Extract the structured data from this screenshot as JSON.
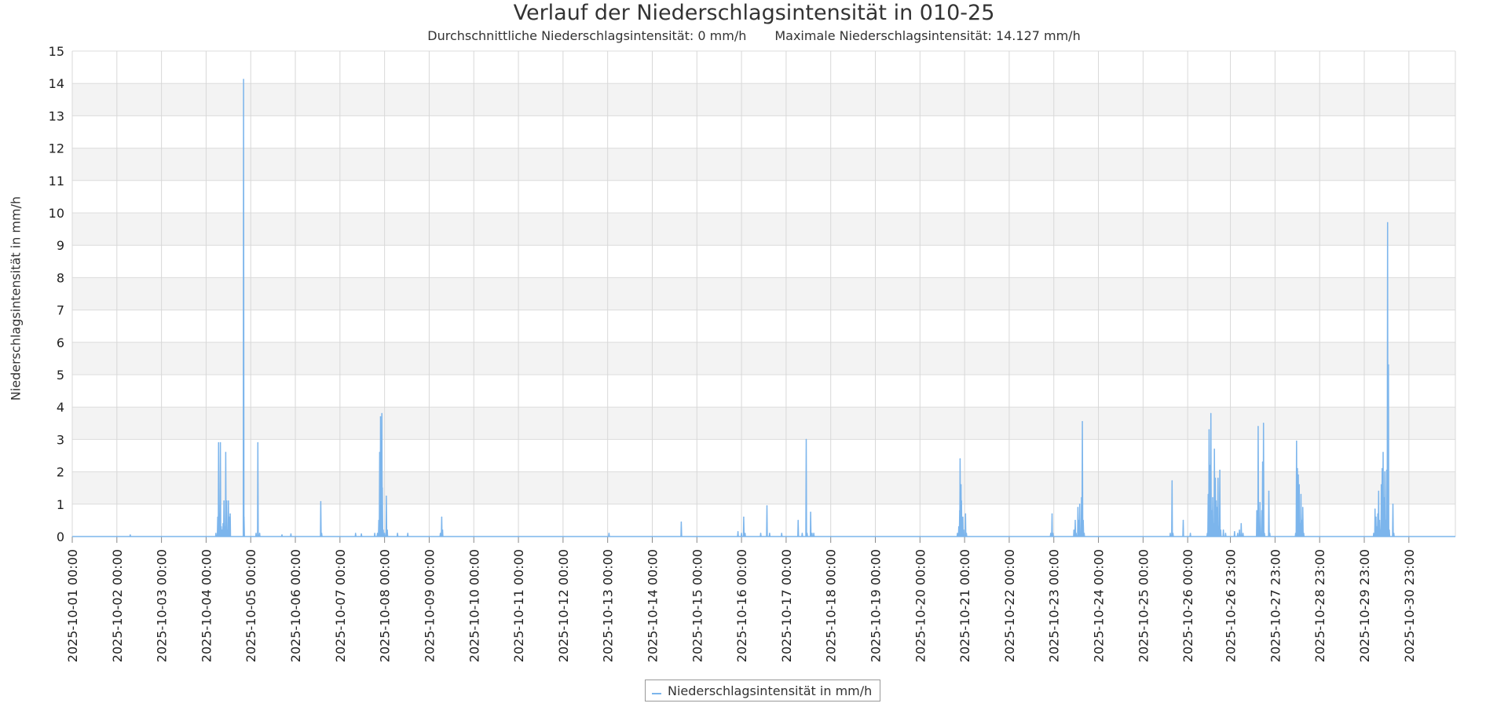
{
  "chart_data": {
    "type": "line",
    "title": "Verlauf der Niederschlagsintensität in 010-25",
    "subtitle_left": "Durchschnittliche Niederschlagsintensität: 0 mm/h",
    "subtitle_right": "Maximale Niederschlagsintensität: 14.127 mm/h",
    "ylabel": "Niederschlagsintensität in mm/h",
    "ylim": [
      0,
      15
    ],
    "ytick_step": 1,
    "xlim_days": [
      1,
      32
    ],
    "x_ticks": [
      {
        "label": "2025-10-01 00:00",
        "day": 1.0
      },
      {
        "label": "2025-10-02 00:00",
        "day": 2.0
      },
      {
        "label": "2025-10-03 00:00",
        "day": 3.0
      },
      {
        "label": "2025-10-04 00:00",
        "day": 4.0
      },
      {
        "label": "2025-10-05 00:00",
        "day": 5.0
      },
      {
        "label": "2025-10-06 00:00",
        "day": 6.0
      },
      {
        "label": "2025-10-07 00:00",
        "day": 7.0
      },
      {
        "label": "2025-10-08 00:00",
        "day": 8.0
      },
      {
        "label": "2025-10-09 00:00",
        "day": 9.0
      },
      {
        "label": "2025-10-10 00:00",
        "day": 10.0
      },
      {
        "label": "2025-10-11 00:00",
        "day": 11.0
      },
      {
        "label": "2025-10-12 00:00",
        "day": 12.0
      },
      {
        "label": "2025-10-13 00:00",
        "day": 13.0
      },
      {
        "label": "2025-10-14 00:00",
        "day": 14.0
      },
      {
        "label": "2025-10-15 00:00",
        "day": 15.0
      },
      {
        "label": "2025-10-16 00:00",
        "day": 16.0
      },
      {
        "label": "2025-10-17 00:00",
        "day": 17.0
      },
      {
        "label": "2025-10-18 00:00",
        "day": 18.0
      },
      {
        "label": "2025-10-19 00:00",
        "day": 19.0
      },
      {
        "label": "2025-10-20 00:00",
        "day": 20.0
      },
      {
        "label": "2025-10-21 00:00",
        "day": 21.0
      },
      {
        "label": "2025-10-22 00:00",
        "day": 22.0
      },
      {
        "label": "2025-10-23 00:00",
        "day": 23.0
      },
      {
        "label": "2025-10-24 00:00",
        "day": 24.0
      },
      {
        "label": "2025-10-25 00:00",
        "day": 25.0
      },
      {
        "label": "2025-10-26 00:00",
        "day": 26.0
      },
      {
        "label": "2025-10-26 23:00",
        "day": 26.958
      },
      {
        "label": "2025-10-27 23:00",
        "day": 27.958
      },
      {
        "label": "2025-10-28 23:00",
        "day": 28.958
      },
      {
        "label": "2025-10-29 23:00",
        "day": 29.958
      },
      {
        "label": "2025-10-30 23:00",
        "day": 30.958
      }
    ],
    "grid": true,
    "legend_position": "bottom-center",
    "series": [
      {
        "name": "Niederschlagsintensität in mm/h",
        "color": "#7cb5ec",
        "x_unit": "day of October 2025",
        "points": [
          [
            2.3,
            0.05
          ],
          [
            4.22,
            0.1
          ],
          [
            4.26,
            0.6
          ],
          [
            4.28,
            2.9
          ],
          [
            4.3,
            0.7
          ],
          [
            4.32,
            2.9
          ],
          [
            4.34,
            0.3
          ],
          [
            4.36,
            0.2
          ],
          [
            4.38,
            0.4
          ],
          [
            4.4,
            1.1
          ],
          [
            4.42,
            0.3
          ],
          [
            4.44,
            2.6
          ],
          [
            4.46,
            1.1
          ],
          [
            4.48,
            0.2
          ],
          [
            4.5,
            1.1
          ],
          [
            4.52,
            0.6
          ],
          [
            4.54,
            0.7
          ],
          [
            4.84,
            14.127
          ],
          [
            4.85,
            0.6
          ],
          [
            5.12,
            0.1
          ],
          [
            5.16,
            2.9
          ],
          [
            5.2,
            0.1
          ],
          [
            5.7,
            0.05
          ],
          [
            5.9,
            0.08
          ],
          [
            6.57,
            1.08
          ],
          [
            6.59,
            0.1
          ],
          [
            7.35,
            0.1
          ],
          [
            7.48,
            0.08
          ],
          [
            7.78,
            0.1
          ],
          [
            7.84,
            0.1
          ],
          [
            7.87,
            0.5
          ],
          [
            7.89,
            2.6
          ],
          [
            7.91,
            3.7
          ],
          [
            7.92,
            0.5
          ],
          [
            7.94,
            3.8
          ],
          [
            7.95,
            1.5
          ],
          [
            7.97,
            0.2
          ],
          [
            8.0,
            0.1
          ],
          [
            8.04,
            1.25
          ],
          [
            8.06,
            0.2
          ],
          [
            8.29,
            0.1
          ],
          [
            8.52,
            0.1
          ],
          [
            9.25,
            0.1
          ],
          [
            9.28,
            0.6
          ],
          [
            9.3,
            0.2
          ],
          [
            13.03,
            0.1
          ],
          [
            14.65,
            0.45
          ],
          [
            15.92,
            0.15
          ],
          [
            16.0,
            0.1
          ],
          [
            16.05,
            0.6
          ],
          [
            16.08,
            0.1
          ],
          [
            16.43,
            0.1
          ],
          [
            16.57,
            0.95
          ],
          [
            16.63,
            0.1
          ],
          [
            16.9,
            0.1
          ],
          [
            17.27,
            0.5
          ],
          [
            17.36,
            0.1
          ],
          [
            17.45,
            3.0
          ],
          [
            17.47,
            0.1
          ],
          [
            17.55,
            0.75
          ],
          [
            17.58,
            0.1
          ],
          [
            17.62,
            0.1
          ],
          [
            20.84,
            0.1
          ],
          [
            20.87,
            0.3
          ],
          [
            20.89,
            0.8
          ],
          [
            20.9,
            2.4
          ],
          [
            20.92,
            1.6
          ],
          [
            20.93,
            1.1
          ],
          [
            20.94,
            0.5
          ],
          [
            20.96,
            0.6
          ],
          [
            20.98,
            0.2
          ],
          [
            21.02,
            0.7
          ],
          [
            21.04,
            0.1
          ],
          [
            22.93,
            0.1
          ],
          [
            22.96,
            0.7
          ],
          [
            22.98,
            0.1
          ],
          [
            23.45,
            0.2
          ],
          [
            23.48,
            0.5
          ],
          [
            23.5,
            0.1
          ],
          [
            23.54,
            0.9
          ],
          [
            23.56,
            0.5
          ],
          [
            23.58,
            1.0
          ],
          [
            23.6,
            0.1
          ],
          [
            23.62,
            1.2
          ],
          [
            23.64,
            3.55
          ],
          [
            23.66,
            0.5
          ],
          [
            23.68,
            0.1
          ],
          [
            25.61,
            0.1
          ],
          [
            25.65,
            1.72
          ],
          [
            25.67,
            0.1
          ],
          [
            25.9,
            0.5
          ],
          [
            26.06,
            0.1
          ],
          [
            26.44,
            0.1
          ],
          [
            26.46,
            1.3
          ],
          [
            26.48,
            3.3
          ],
          [
            26.5,
            2.2
          ],
          [
            26.52,
            3.8
          ],
          [
            26.54,
            0.8
          ],
          [
            26.56,
            1.2
          ],
          [
            26.58,
            0.4
          ],
          [
            26.6,
            2.7
          ],
          [
            26.62,
            1.8
          ],
          [
            26.64,
            1.1
          ],
          [
            26.66,
            0.9
          ],
          [
            26.68,
            1.8
          ],
          [
            26.7,
            0.3
          ],
          [
            26.72,
            2.05
          ],
          [
            26.74,
            0.2
          ],
          [
            26.8,
            0.2
          ],
          [
            26.85,
            0.1
          ],
          [
            27.05,
            0.15
          ],
          [
            27.12,
            0.1
          ],
          [
            27.16,
            0.2
          ],
          [
            27.2,
            0.4
          ],
          [
            27.24,
            0.1
          ],
          [
            27.55,
            0.8
          ],
          [
            27.58,
            3.4
          ],
          [
            27.62,
            1.05
          ],
          [
            27.66,
            0.8
          ],
          [
            27.68,
            2.3
          ],
          [
            27.7,
            3.5
          ],
          [
            27.72,
            0.1
          ],
          [
            27.82,
            1.4
          ],
          [
            27.84,
            0.1
          ],
          [
            28.42,
            0.1
          ],
          [
            28.44,
            2.95
          ],
          [
            28.46,
            2.1
          ],
          [
            28.48,
            1.9
          ],
          [
            28.5,
            1.6
          ],
          [
            28.52,
            0.4
          ],
          [
            28.54,
            1.3
          ],
          [
            28.56,
            0.5
          ],
          [
            28.58,
            0.9
          ],
          [
            28.6,
            0.1
          ],
          [
            30.17,
            0.1
          ],
          [
            30.2,
            0.85
          ],
          [
            30.22,
            0.6
          ],
          [
            30.24,
            0.3
          ],
          [
            30.26,
            0.7
          ],
          [
            30.28,
            1.4
          ],
          [
            30.3,
            0.5
          ],
          [
            30.32,
            0.2
          ],
          [
            30.34,
            1.6
          ],
          [
            30.36,
            2.1
          ],
          [
            30.38,
            2.6
          ],
          [
            30.4,
            1.2
          ],
          [
            30.42,
            2.0
          ],
          [
            30.44,
            0.5
          ],
          [
            30.46,
            2.05
          ],
          [
            30.48,
            9.7
          ],
          [
            30.5,
            5.3
          ],
          [
            30.52,
            0.2
          ],
          [
            30.6,
            1.0
          ],
          [
            30.62,
            0.1
          ]
        ]
      }
    ]
  }
}
